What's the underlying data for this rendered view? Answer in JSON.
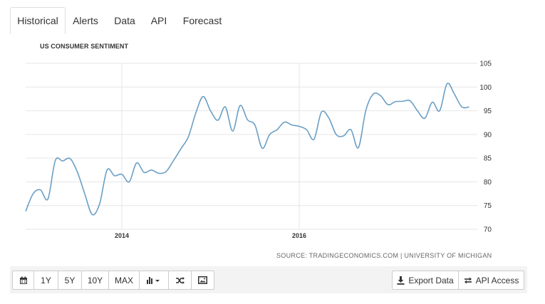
{
  "tabs": [
    {
      "label": "Historical",
      "active": true
    },
    {
      "label": "Alerts"
    },
    {
      "label": "Data"
    },
    {
      "label": "API"
    },
    {
      "label": "Forecast"
    }
  ],
  "chart_title": "US CONSUMER SENTIMENT",
  "source": "SOURCE: TRADINGECONOMICS.COM | UNIVERSITY OF MICHIGAN",
  "toolbar": {
    "ranges": [
      "1Y",
      "5Y",
      "10Y",
      "MAX"
    ],
    "icons": [
      "calendar-icon",
      "bar-chart-icon",
      "shuffle-icon",
      "image-icon"
    ],
    "export_label": "Export Data",
    "api_label": "API Access"
  },
  "colors": {
    "line": "#6a9fc5",
    "grid": "#e6e6e6"
  },
  "chart_data": {
    "type": "line",
    "title": "US CONSUMER SENTIMENT",
    "x_ticks": [
      "2014",
      "2016"
    ],
    "y_ticks": [
      70,
      75,
      80,
      85,
      90,
      95,
      100,
      105
    ],
    "ylim": [
      70,
      105
    ],
    "y_axis_side": "right",
    "grid": true,
    "series": [
      {
        "x": [
          "2012-12",
          "2013-01",
          "2013-02",
          "2013-03",
          "2013-04",
          "2013-05",
          "2013-06",
          "2013-07",
          "2013-08",
          "2013-09",
          "2013-10",
          "2013-11",
          "2013-12",
          "2014-01",
          "2014-02",
          "2014-03",
          "2014-04",
          "2014-05",
          "2014-06",
          "2014-07",
          "2014-08",
          "2014-09",
          "2014-10",
          "2014-11",
          "2014-12",
          "2015-01",
          "2015-02",
          "2015-03",
          "2015-04",
          "2015-05",
          "2015-06",
          "2015-07",
          "2015-08",
          "2015-09",
          "2015-10",
          "2015-11",
          "2015-12",
          "2016-01",
          "2016-02",
          "2016-03",
          "2016-04",
          "2016-05",
          "2016-06",
          "2016-07",
          "2016-08",
          "2016-09",
          "2016-10",
          "2016-11",
          "2016-12",
          "2017-01",
          "2017-02",
          "2017-03",
          "2017-04",
          "2017-05",
          "2017-06",
          "2017-07",
          "2017-08",
          "2017-09",
          "2017-10",
          "2017-11",
          "2017-12"
        ],
        "values": [
          73.8,
          77.5,
          78.3,
          76.4,
          84.5,
          84.4,
          84.9,
          82.0,
          77.4,
          73.1,
          75.4,
          82.5,
          81.3,
          81.6,
          80.0,
          84.0,
          82.0,
          82.5,
          81.8,
          82.2,
          84.5,
          87.0,
          89.5,
          94.5,
          98.0,
          95.0,
          93.0,
          95.8,
          90.7,
          96.1,
          93.1,
          92.0,
          87.1,
          90.0,
          91.0,
          92.6,
          92.0,
          91.7,
          91.0,
          89.0,
          94.7,
          93.5,
          90.0,
          89.7,
          91.0,
          87.2,
          95.0,
          98.5,
          98.2,
          96.3,
          96.9,
          97.0,
          97.1,
          95.0,
          93.4,
          96.8,
          95.0,
          100.7,
          98.5,
          95.8,
          95.8
        ]
      }
    ]
  }
}
